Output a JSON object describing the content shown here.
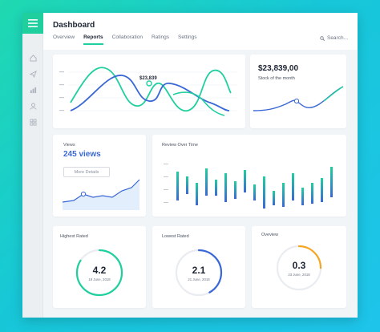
{
  "header": {
    "title": "Dashboard",
    "tabs": [
      {
        "label": "Overview"
      },
      {
        "label": "Reports"
      },
      {
        "label": "Collaboration"
      },
      {
        "label": "Ratings"
      },
      {
        "label": "Settings"
      }
    ],
    "active_tab": "Reports",
    "search_placeholder": "Search..."
  },
  "sidebar": {
    "icons": [
      "menu-icon",
      "home-icon",
      "send-icon",
      "bar-chart-icon",
      "user-icon",
      "grid-icon"
    ]
  },
  "main_chart": {
    "tooltip": "$23,839"
  },
  "stock_card": {
    "value": "$23,839,00",
    "caption": "Stock of the month"
  },
  "views_card": {
    "label": "Views",
    "value": "245 views",
    "button": "More Details"
  },
  "review_card": {
    "title": "Review Over Time"
  },
  "gauges": [
    {
      "label": "Highest Rated",
      "value": "4.2",
      "date": "19 June, 2018",
      "fraction": 0.84,
      "color": "#1fcf9e"
    },
    {
      "label": "Lowest Rated",
      "value": "2.1",
      "date": "21 June, 2018",
      "fraction": 0.42,
      "color": "#3a67d6"
    },
    {
      "label": "Oveview",
      "value": "0.3",
      "date": "23 June, 2018",
      "fraction": 0.25,
      "color": "#f5a623"
    }
  ],
  "colors": {
    "accent_green": "#1fcf9e",
    "accent_blue": "#3a67d6",
    "accent_orange": "#f5a623"
  }
}
